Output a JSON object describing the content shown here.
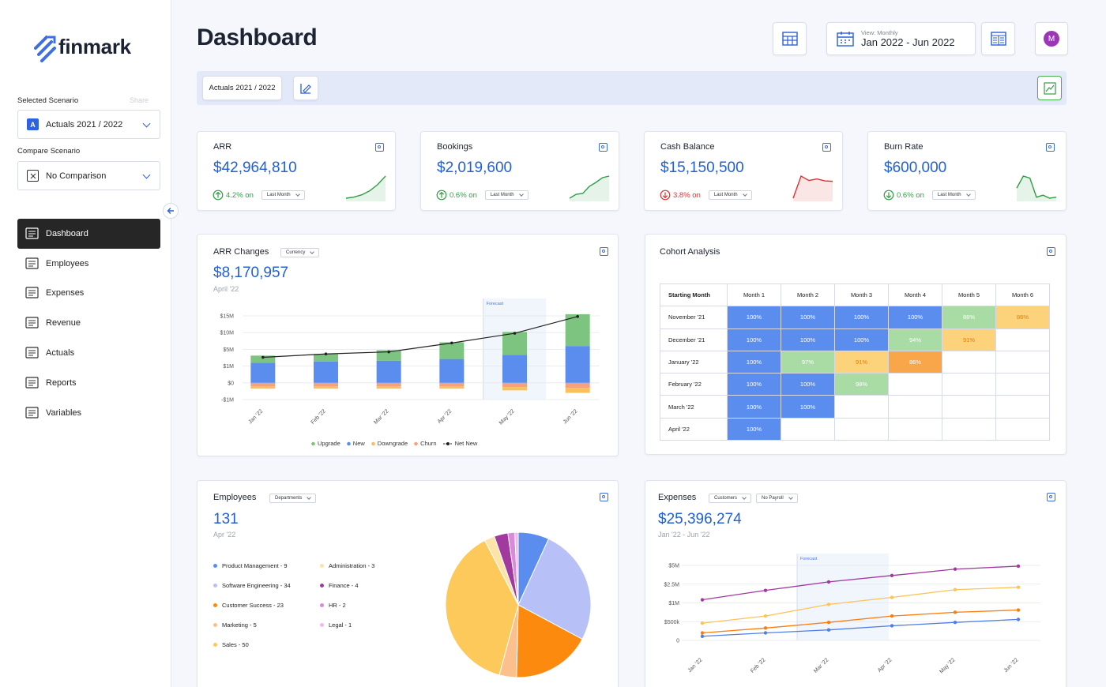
{
  "sidebar": {
    "logo": "finmark",
    "selected_scenario_label": "Selected Scenario",
    "share": "Share",
    "selected_scenario_badge": "A",
    "selected_scenario": "Actuals 2021 / 2022",
    "compare_scenario_label": "Compare Scenario",
    "compare_scenario": "No Comparison",
    "nav": [
      "Dashboard",
      "Employees",
      "Expenses",
      "Revenue",
      "Actuals",
      "Reports",
      "Variables"
    ]
  },
  "header": {
    "title": "Dashboard",
    "view_label": "View: Monthly",
    "period": "Jan 2022 - Jun 2022",
    "avatar": "M"
  },
  "toolbar": {
    "scenario": "Actuals 2021 / 2022"
  },
  "kpis": [
    {
      "title": "ARR",
      "value": "$42,964,810",
      "change": "4.2% on",
      "period": "Last Month",
      "direction": "up",
      "color": "#2f9e44",
      "sparkline": [
        2,
        2.4,
        3.2,
        4.6,
        6.8,
        9.8
      ]
    },
    {
      "title": "Bookings",
      "value": "$2,019,600",
      "change": "0.6% on",
      "period": "Last Month",
      "direction": "up",
      "color": "#2f9e44",
      "sparkline": [
        3,
        4,
        4.2,
        6,
        7,
        8.2,
        8.6
      ]
    },
    {
      "title": "Cash Balance",
      "value": "$15,150,500",
      "change": "3.8% on",
      "period": "Last Month",
      "direction": "down",
      "color": "#e03131",
      "sparkline": [
        3,
        8.5,
        7.4,
        7.8,
        7.3,
        7.2
      ]
    },
    {
      "title": "Burn Rate",
      "value": "$600,000",
      "change": "0.6% on",
      "period": "Last Month",
      "direction": "down",
      "color": "#2f9e44",
      "sparkline": [
        6,
        7.2,
        7,
        5.1,
        5.3,
        5,
        5.1
      ]
    }
  ],
  "arr_changes": {
    "title": "ARR Changes",
    "dropdown": "Currency",
    "value": "$8,170,957",
    "subtitle": "April '22",
    "chart_data": {
      "type": "bar",
      "stacked": true,
      "categories": [
        "Jan '22",
        "Feb '22",
        "Mar '22",
        "Apr '22",
        "May '22",
        "Jun '22"
      ],
      "series": [
        {
          "name": "Upgrade",
          "color": "#7cc47f",
          "values": [
            1700000,
            1800000,
            2500000,
            4400000,
            6500000,
            9500000
          ]
        },
        {
          "name": "New",
          "color": "#5b8def",
          "values": [
            1800000,
            2100000,
            2300000,
            2700000,
            3700000,
            6000000
          ]
        },
        {
          "name": "Downgrade",
          "color": "#f9c05b",
          "values": [
            -150000,
            -150000,
            -150000,
            -150000,
            -200000,
            -300000
          ]
        },
        {
          "name": "Churn",
          "color": "#f7a07d",
          "values": [
            -200000,
            -200000,
            -200000,
            -200000,
            -250000,
            -300000
          ]
        },
        {
          "name": "Net New",
          "color": "#222222",
          "type": "line",
          "values": [
            3100000,
            3900000,
            4400000,
            6900000,
            9800000,
            14800000
          ]
        }
      ],
      "ylim": [
        -1000000,
        15000000
      ],
      "yticks": [
        {
          "value": -1000000,
          "label": "-$1M"
        },
        {
          "value": 0,
          "label": "$0"
        },
        {
          "value": 1000000,
          "label": "$1M"
        },
        {
          "value": 5000000,
          "label": "$5M"
        },
        {
          "value": 10000000,
          "label": "$10M"
        },
        {
          "value": 15000000,
          "label": "$15M"
        }
      ],
      "grid": true,
      "forecast_label": "Forecast"
    }
  },
  "cohort": {
    "title": "Cohort Analysis",
    "columns": [
      "Starting Month",
      "Month 1",
      "Month 2",
      "Month 3",
      "Month 4",
      "Month 5",
      "Month 6"
    ],
    "rows": [
      {
        "label": "November '21",
        "cells": [
          "100%",
          "100%",
          "100%",
          "100%",
          "88%",
          "86%"
        ],
        "colors": [
          "#5b8def",
          "#5b8def",
          "#5b8def",
          "#5b8def",
          "#a9dba4",
          "#fcd27b"
        ]
      },
      {
        "label": "December '21",
        "cells": [
          "100%",
          "100%",
          "100%",
          "94%",
          "91%"
        ],
        "colors": [
          "#5b8def",
          "#5b8def",
          "#5b8def",
          "#a9dba4",
          "#fcd27b"
        ]
      },
      {
        "label": "January '22",
        "cells": [
          "100%",
          "97%",
          "91%",
          "86%"
        ],
        "colors": [
          "#5b8def",
          "#a9dba4",
          "#fcd27b",
          "#f9a64a"
        ]
      },
      {
        "label": "February '22",
        "cells": [
          "100%",
          "100%",
          "98%"
        ],
        "colors": [
          "#5b8def",
          "#5b8def",
          "#a9dba4"
        ]
      },
      {
        "label": "March '22",
        "cells": [
          "100%",
          "100%"
        ],
        "colors": [
          "#5b8def",
          "#5b8def"
        ]
      },
      {
        "label": "April '22",
        "cells": [
          "100%"
        ],
        "colors": [
          "#5b8def"
        ]
      }
    ]
  },
  "employees": {
    "title": "Employees",
    "dropdown": "Departments",
    "value": "131",
    "subtitle": "Apr '22",
    "chart_data": {
      "type": "pie",
      "values": [
        9,
        34,
        23,
        5,
        50,
        3,
        4,
        2,
        1
      ],
      "value_labels": [
        "Product Management - 9",
        "Software Engineering - 34",
        "Customer Success - 23",
        "Marketing - 5",
        "Sales - 50",
        "Administration - 3",
        "Finance - 4",
        "HR - 2",
        "Legal - 1"
      ],
      "colors": [
        "#5b8def",
        "#b8c0f8",
        "#fb8a0f",
        "#fbc08c",
        "#fcc95a",
        "#fde3a7",
        "#a2399f",
        "#d98bd9",
        "#f0b8ec"
      ]
    }
  },
  "expenses": {
    "title": "Expenses",
    "dropdowns": [
      "Customers",
      "No Payroll"
    ],
    "value": "$25,396,274",
    "subtitle": "Jan '22 - Jun '22",
    "chart_data": {
      "type": "line",
      "categories": [
        "Jan '22",
        "Feb '22",
        "Mar '22",
        "Apr '22",
        "May '22",
        "Jun '22"
      ],
      "series": [
        {
          "color": "#a2399f",
          "values": [
            1250000,
            2000000,
            2800000,
            3650000,
            4500000,
            4900000
          ]
        },
        {
          "color": "#fcc35a",
          "values": [
            460000,
            650000,
            960000,
            1440000,
            2060000,
            2250000
          ]
        },
        {
          "color": "#fb7d0f",
          "values": [
            200000,
            330000,
            480000,
            650000,
            750000,
            810000
          ]
        },
        {
          "color": "#4f7fe6",
          "values": [
            110000,
            200000,
            280000,
            390000,
            480000,
            560000
          ]
        }
      ],
      "ylim": [
        0,
        5000000
      ],
      "yticks": [
        0,
        {
          "value": 500000,
          "label": "$500k"
        },
        {
          "value": 1000000,
          "label": "$1M"
        },
        {
          "value": 2500000,
          "label": "$2.5M"
        },
        {
          "value": 5000000,
          "label": "$5M"
        }
      ],
      "grid": true,
      "forecast_label": "Forecast"
    }
  }
}
